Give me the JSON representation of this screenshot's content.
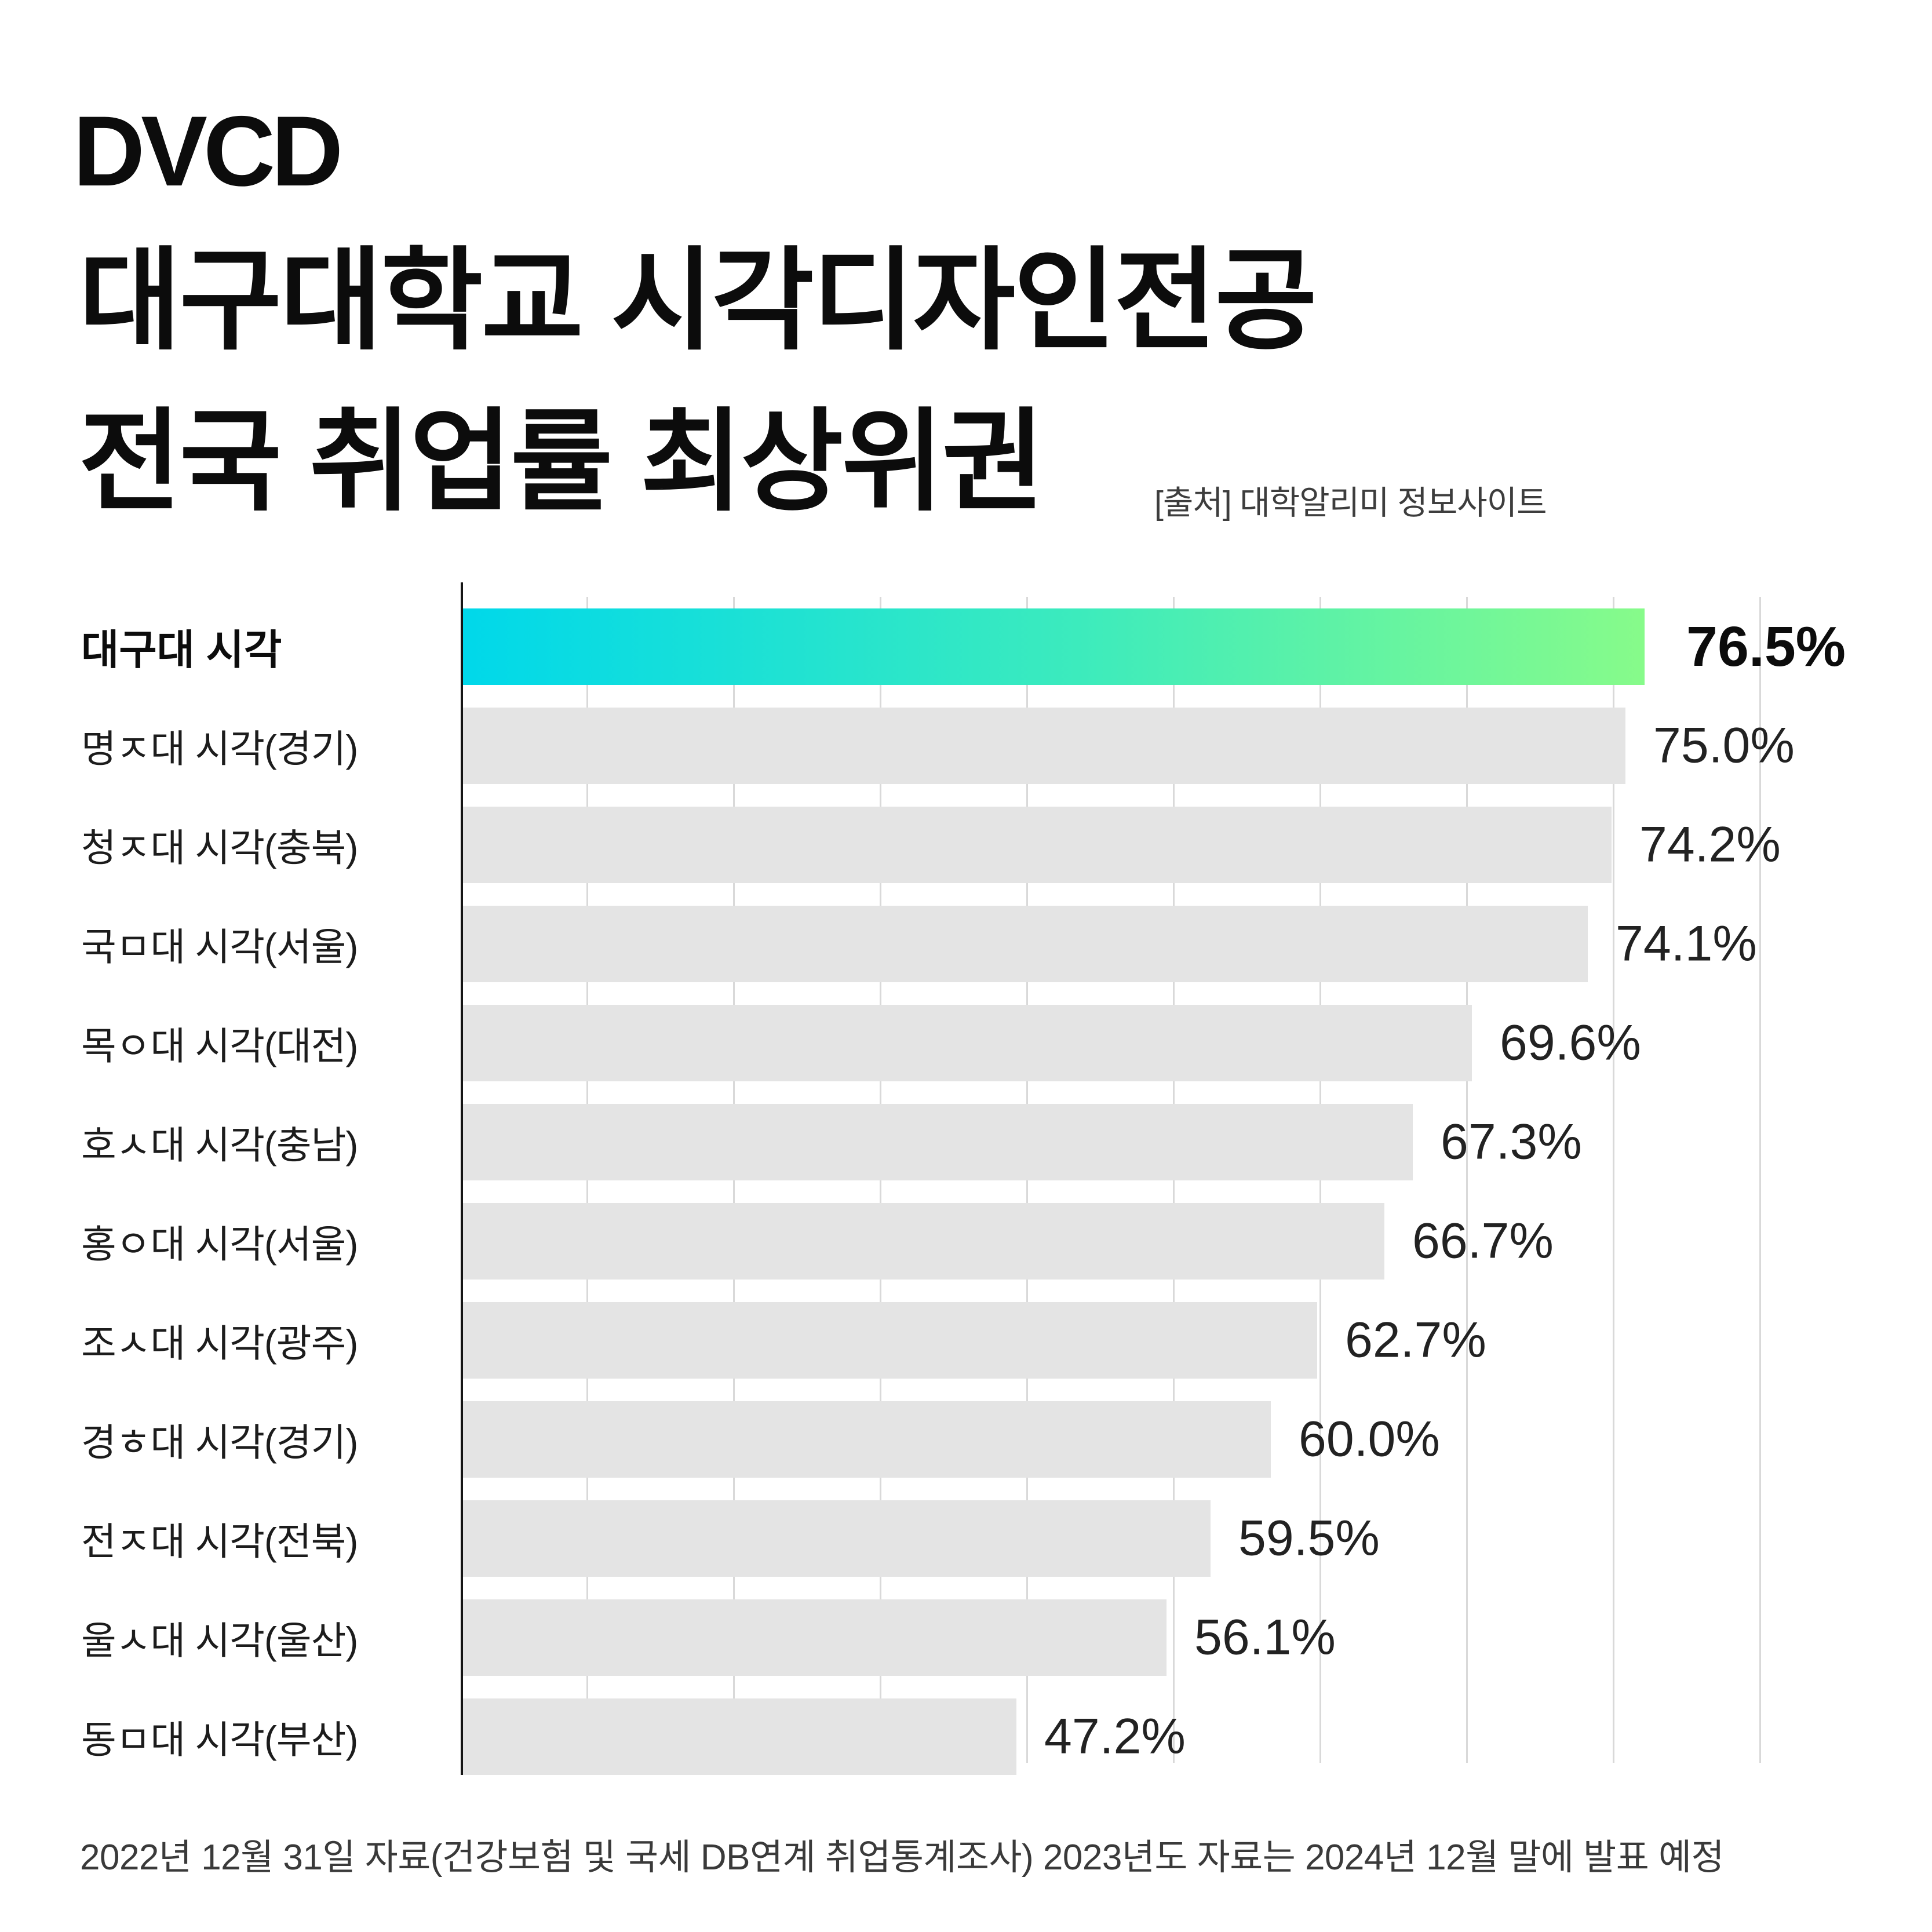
{
  "logo": "DVCD",
  "header": {
    "title_line1": "대구대학교 시각디자인전공",
    "title_line2": "전국 취업률 최상위권",
    "source": "[출처] 대학알리미 정보사이트"
  },
  "footer": {
    "note": "2022년 12월 31일 자료(건강보험 및 국세 DB연계 취업통계조사) 2023년도 자료는 2024년 12월 말에 발표 예정"
  },
  "colors": {
    "highlight_gradient_start": "#00d8ea",
    "highlight_gradient_end": "#87fb8a",
    "bar_gray": "#e4e4e4",
    "gridline": "#d9d9d9",
    "axis": "#151515",
    "title_text": "#0c0c0c",
    "source_text": "#3d3d3d",
    "footer_text": "#3a3a3a"
  },
  "chart_data": {
    "type": "bar",
    "orientation": "horizontal",
    "title": "대구대학교 시각디자인전공 전국 취업률 최상위권",
    "xlabel": "",
    "ylabel": "",
    "categories": [
      "대구대 시각",
      "명ㅈ대 시각(경기)",
      "청ㅈ대 시각(충북)",
      "국ㅁ대 시각(서울)",
      "목ㅇ대 시각(대전)",
      "호ㅅ대 시각(충남)",
      "홍ㅇ대 시각(서울)",
      "조ㅅ대 시각(광주)",
      "경ㅎ대 시각(경기)",
      "전ㅈ대 시각(전북)",
      "울ㅅ대 시각(울산)",
      "동ㅁ대 시각(부산)"
    ],
    "values": [
      76.5,
      75.0,
      74.2,
      74.1,
      69.6,
      67.3,
      66.7,
      62.7,
      60.0,
      59.5,
      56.1,
      47.2
    ],
    "value_labels": [
      "76.5%",
      "75.0%",
      "74.2%",
      "74.1%",
      "69.6%",
      "67.3%",
      "66.7%",
      "62.7%",
      "60.0%",
      "59.5%",
      "56.1%",
      "47.2%"
    ],
    "highlight_index": 0,
    "grid": true,
    "gridline_count": 9,
    "axis_tick_labels_shown": false,
    "bar_width_pct_of_max": [
      100,
      98.4,
      97.2,
      95.2,
      85.4,
      80.4,
      78.0,
      72.3,
      68.4,
      63.3,
      59.6,
      46.9
    ]
  }
}
